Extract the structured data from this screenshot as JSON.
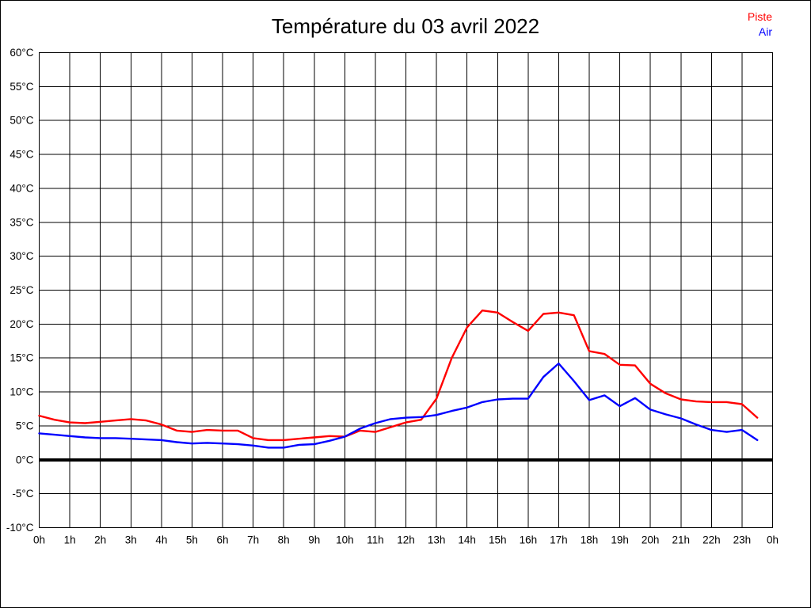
{
  "page": {
    "title": "Température du 03 avril 2022"
  },
  "legend": {
    "items": [
      {
        "label": "Piste",
        "color": "#ff0000"
      },
      {
        "label": "Air",
        "color": "#0000ff"
      }
    ]
  },
  "chart_data": {
    "type": "line",
    "title": "Température du 03 avril 2022",
    "xlabel": "",
    "ylabel": "",
    "x_unit": "hours",
    "xlim": [
      0,
      24
    ],
    "ylim": [
      -10,
      60
    ],
    "grid": true,
    "zero_line_value": 0,
    "legend_position": "top-right",
    "x_tick_labels": [
      "0h",
      "1h",
      "2h",
      "3h",
      "4h",
      "5h",
      "6h",
      "7h",
      "8h",
      "9h",
      "10h",
      "11h",
      "12h",
      "13h",
      "14h",
      "15h",
      "16h",
      "17h",
      "18h",
      "19h",
      "20h",
      "21h",
      "22h",
      "23h",
      "0h"
    ],
    "y_ticks": [
      60,
      55,
      50,
      45,
      40,
      35,
      30,
      25,
      20,
      15,
      10,
      5,
      0,
      -5,
      -10
    ],
    "y_tick_labels": [
      "60°C",
      "55°C",
      "50°C",
      "45°C",
      "40°C",
      "35°C",
      "30°C",
      "25°C",
      "20°C",
      "15°C",
      "10°C",
      "5°C",
      "0°C",
      "-5°C",
      "-10°C"
    ],
    "x": [
      0,
      0.5,
      1,
      1.5,
      2,
      2.5,
      3,
      3.5,
      4,
      4.5,
      5,
      5.5,
      6,
      6.5,
      7,
      7.5,
      8,
      8.5,
      9,
      9.5,
      10,
      10.5,
      11,
      11.5,
      12,
      12.5,
      13,
      13.5,
      14,
      14.5,
      15,
      15.5,
      16,
      16.5,
      17,
      17.5,
      18,
      18.5,
      19,
      19.5,
      20,
      20.5,
      21,
      21.5,
      22,
      22.5,
      23,
      23.5
    ],
    "series": [
      {
        "name": "Piste",
        "color": "#ff0000",
        "values": [
          6.5,
          5.9,
          5.5,
          5.4,
          5.6,
          5.8,
          6.0,
          5.8,
          5.2,
          4.3,
          4.1,
          4.4,
          4.3,
          4.3,
          3.2,
          2.9,
          2.9,
          3.1,
          3.3,
          3.5,
          3.4,
          4.3,
          4.1,
          4.8,
          5.5,
          5.9,
          9.0,
          15.0,
          19.5,
          22.0,
          21.7,
          20.3,
          19.0,
          21.5,
          21.7,
          21.3,
          16.0,
          15.6,
          14.0,
          13.9,
          11.2,
          9.8,
          8.9,
          8.6,
          8.5,
          8.5,
          8.2,
          6.2
        ]
      },
      {
        "name": "Air",
        "color": "#0000ff",
        "values": [
          3.9,
          3.7,
          3.5,
          3.3,
          3.2,
          3.2,
          3.1,
          3.0,
          2.9,
          2.6,
          2.4,
          2.5,
          2.4,
          2.3,
          2.1,
          1.8,
          1.8,
          2.2,
          2.3,
          2.8,
          3.4,
          4.6,
          5.4,
          6.0,
          6.2,
          6.3,
          6.6,
          7.2,
          7.7,
          8.5,
          8.9,
          9.0,
          9.0,
          12.2,
          14.2,
          11.6,
          8.8,
          9.5,
          7.9,
          9.1,
          7.4,
          6.7,
          6.1,
          5.2,
          4.4,
          4.1,
          4.4,
          2.9
        ]
      }
    ]
  }
}
